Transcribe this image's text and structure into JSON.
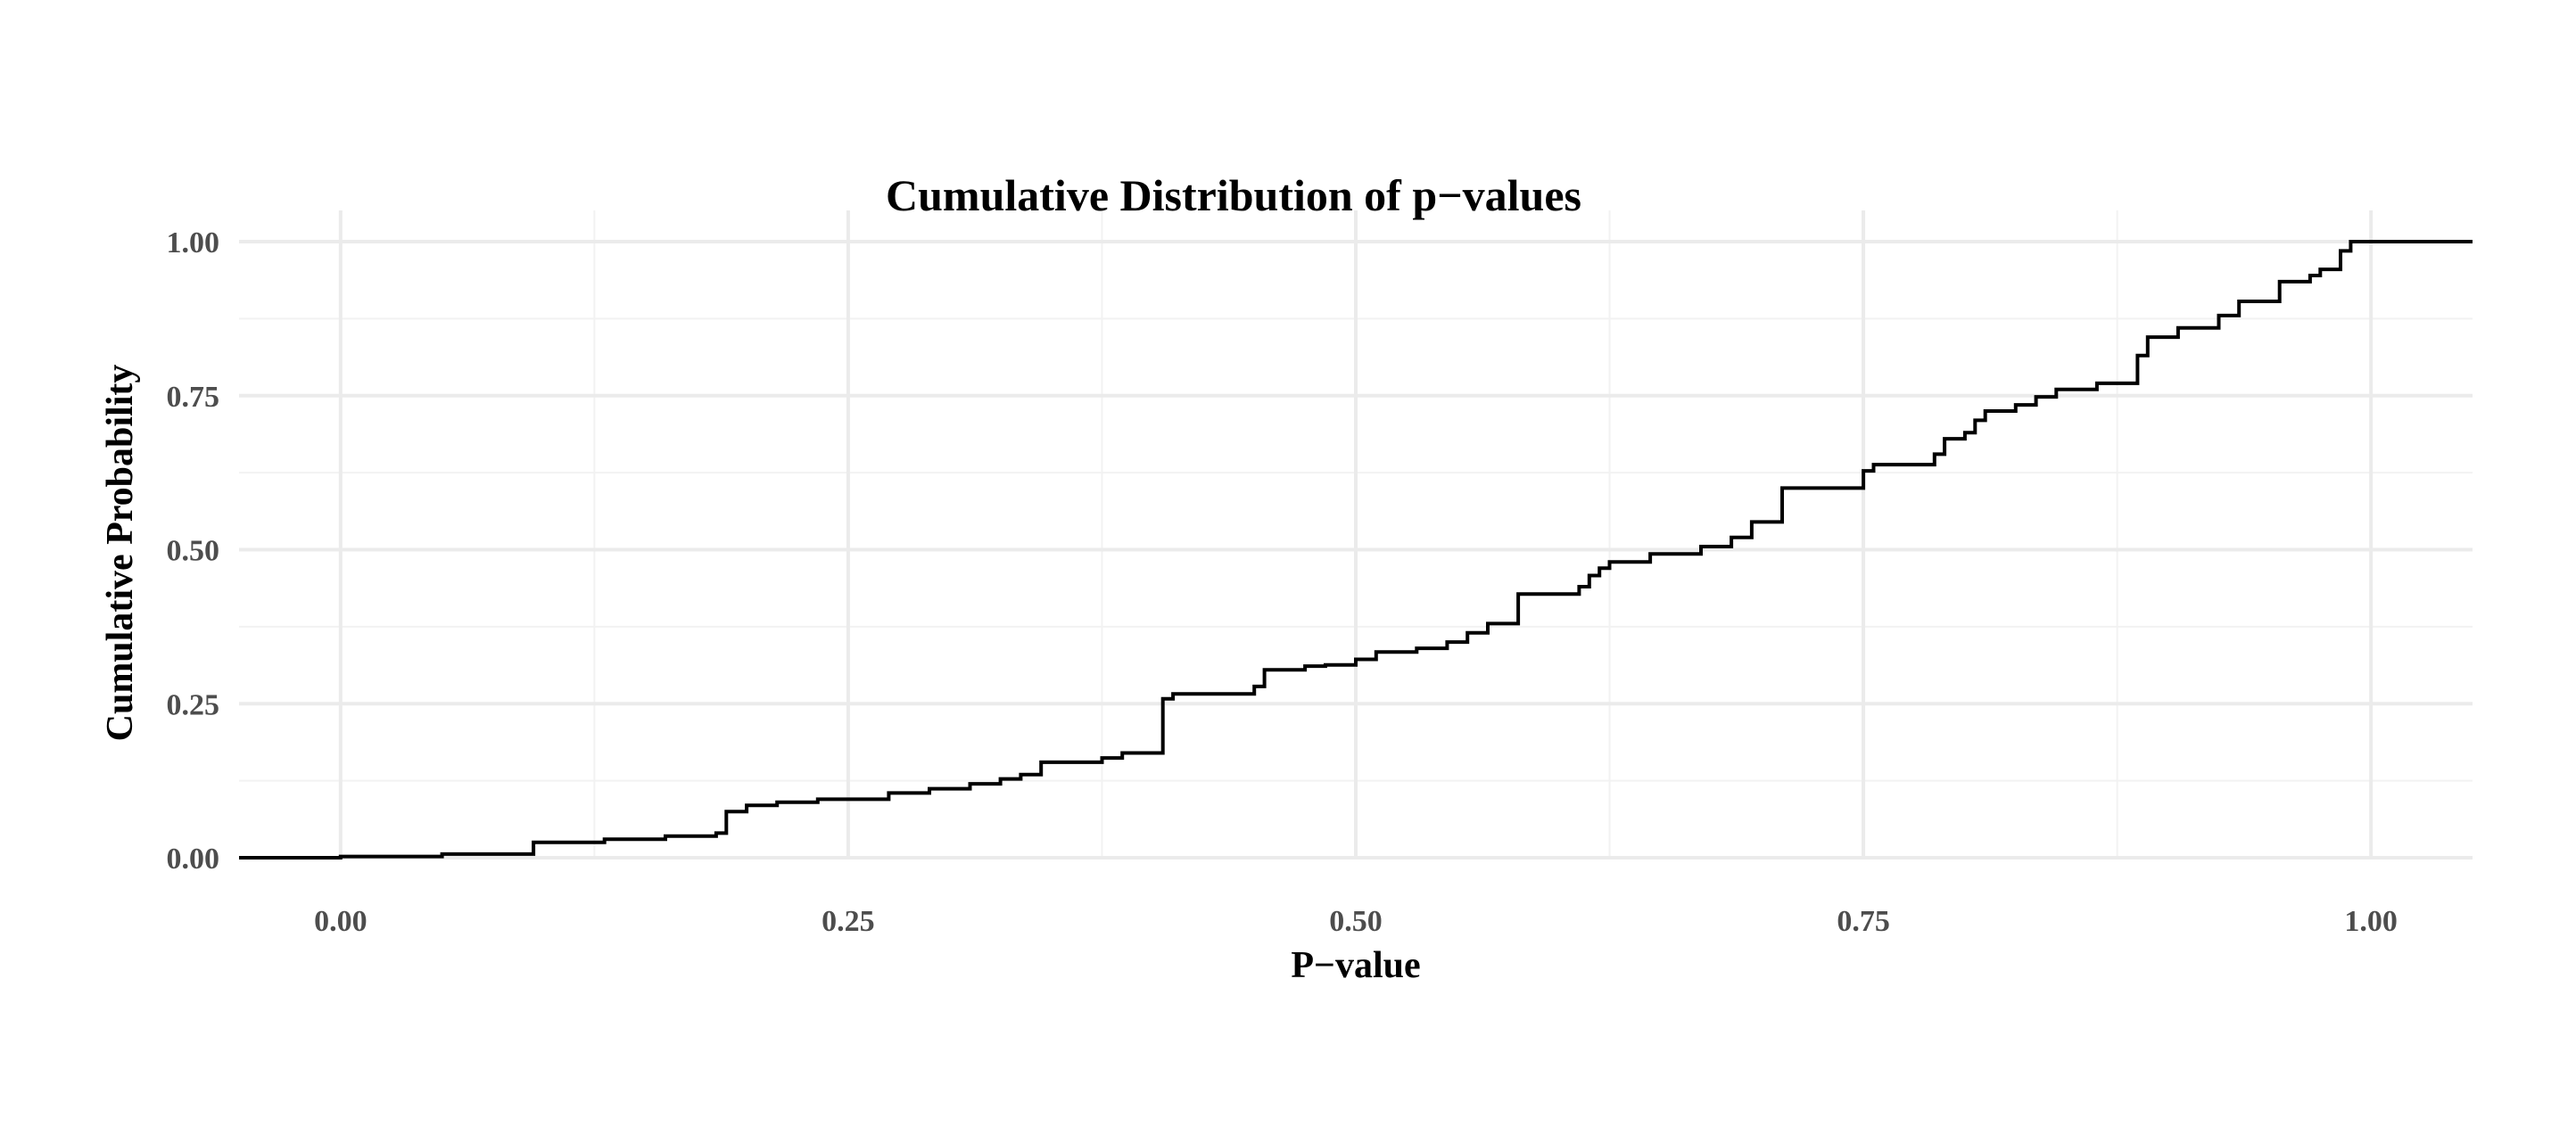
{
  "chart_data": {
    "type": "line",
    "title": "Cumulative Distribution of p−values",
    "xlabel": "P−value",
    "ylabel": "Cumulative Probability",
    "xlim": [
      -0.05,
      1.05
    ],
    "ylim": [
      0,
      1
    ],
    "x_ticks": [
      "0.00",
      "0.25",
      "0.50",
      "0.75",
      "1.00"
    ],
    "y_ticks": [
      "0.00",
      "0.25",
      "0.50",
      "0.75",
      "1.00"
    ],
    "grid": true,
    "step": true,
    "series": [
      {
        "x": [
          -0.05,
          0.0,
          0.05,
          0.095,
          0.13,
          0.16,
          0.185,
          0.19,
          0.2,
          0.215,
          0.235,
          0.27,
          0.29,
          0.31,
          0.325,
          0.335,
          0.345,
          0.375,
          0.385,
          0.405,
          0.41,
          0.45,
          0.455,
          0.475,
          0.485,
          0.5,
          0.51,
          0.53,
          0.545,
          0.555,
          0.565,
          0.58,
          0.61,
          0.615,
          0.62,
          0.625,
          0.645,
          0.67,
          0.685,
          0.695,
          0.71,
          0.75,
          0.755,
          0.785,
          0.79,
          0.8,
          0.805,
          0.81,
          0.825,
          0.835,
          0.845,
          0.865,
          0.885,
          0.89,
          0.905,
          0.925,
          0.935,
          0.955,
          0.97,
          0.975,
          0.985,
          0.99,
          1.05
        ],
        "y": [
          0.0,
          0.002,
          0.006,
          0.025,
          0.03,
          0.035,
          0.04,
          0.075,
          0.085,
          0.09,
          0.095,
          0.105,
          0.112,
          0.12,
          0.128,
          0.135,
          0.155,
          0.162,
          0.17,
          0.258,
          0.266,
          0.278,
          0.305,
          0.311,
          0.313,
          0.322,
          0.334,
          0.34,
          0.35,
          0.365,
          0.38,
          0.428,
          0.44,
          0.458,
          0.47,
          0.48,
          0.493,
          0.505,
          0.52,
          0.545,
          0.6,
          0.628,
          0.638,
          0.655,
          0.68,
          0.69,
          0.71,
          0.725,
          0.735,
          0.748,
          0.76,
          0.77,
          0.815,
          0.845,
          0.86,
          0.88,
          0.903,
          0.935,
          0.945,
          0.955,
          0.985,
          1.0,
          1.0
        ]
      }
    ]
  }
}
